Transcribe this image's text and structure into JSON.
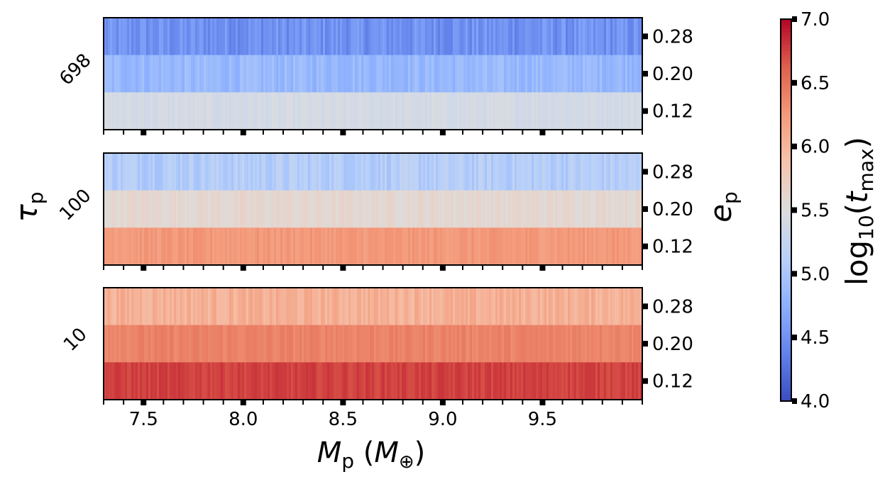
{
  "chart_data": {
    "type": "heatmap",
    "colormap": "coolwarm",
    "x": {
      "label_main": "M",
      "label_sub": "p",
      "label_unit_main": "M",
      "label_unit_sub": "⊕",
      "range": [
        7.3,
        10.0
      ],
      "ticks": [
        7.5,
        8.0,
        8.5,
        9.0,
        9.5
      ],
      "tick_labels": [
        "7.5",
        "8.0",
        "8.5",
        "9.0",
        "9.5"
      ]
    },
    "y_left": {
      "label_main": "τ",
      "label_sub": "p"
    },
    "y_right": {
      "label_main": "e",
      "label_sub": "p",
      "tick_labels": [
        "0.28",
        "0.20",
        "0.12"
      ]
    },
    "colorbar": {
      "label_prefix": "log",
      "label_prefix_sub": "10",
      "label_var": "t",
      "label_var_sub": "max",
      "range": [
        4.0,
        7.0
      ],
      "ticks": [
        4.0,
        4.5,
        5.0,
        5.5,
        6.0,
        6.5,
        7.0
      ],
      "tick_labels": [
        "4.0",
        "4.5",
        "5.0",
        "5.5",
        "6.0",
        "6.5",
        "7.0"
      ]
    },
    "panels": [
      {
        "tau_label": "698",
        "rows": [
          {
            "e": "0.28",
            "mean": 4.5,
            "noise": 0.15
          },
          {
            "e": "0.20",
            "mean": 4.85,
            "noise": 0.12
          },
          {
            "e": "0.12",
            "mean": 5.4,
            "noise": 0.06
          }
        ]
      },
      {
        "tau_label": "100",
        "rows": [
          {
            "e": "0.28",
            "mean": 5.1,
            "noise": 0.14
          },
          {
            "e": "0.20",
            "mean": 5.6,
            "noise": 0.07
          },
          {
            "e": "0.12",
            "mean": 6.25,
            "noise": 0.07
          }
        ]
      },
      {
        "tau_label": "10",
        "rows": [
          {
            "e": "0.28",
            "mean": 6.05,
            "noise": 0.12
          },
          {
            "e": "0.20",
            "mean": 6.4,
            "noise": 0.06
          },
          {
            "e": "0.12",
            "mean": 6.75,
            "noise": 0.06
          }
        ]
      }
    ]
  }
}
